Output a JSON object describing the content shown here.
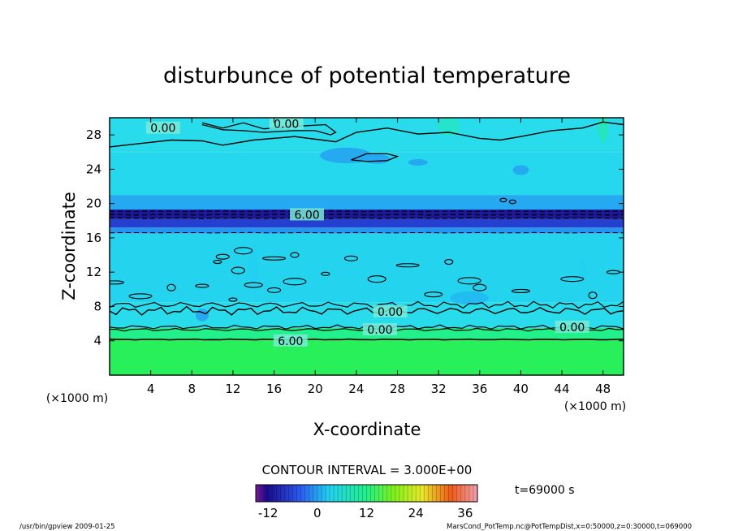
{
  "chart_data": {
    "type": "heatmap",
    "title": "disturbunce of potential temperature",
    "xlabel": "X-coordinate",
    "ylabel": "Z-coordinate",
    "x_unit_left": "(×1000 m)",
    "x_unit_right": "(×1000 m)",
    "xlim": [
      0,
      50
    ],
    "ylim": [
      0,
      30
    ],
    "x_ticks": [
      4,
      8,
      12,
      16,
      20,
      24,
      28,
      32,
      36,
      40,
      44,
      48
    ],
    "y_ticks": [
      4,
      8,
      12,
      16,
      20,
      24,
      28
    ],
    "contour_interval_text": "CONTOUR INTERVAL = 3.000E+00",
    "contour_labels": [
      {
        "text": "0.00",
        "x": 5.2,
        "z": 28.7
      },
      {
        "text": "0.00",
        "x": 17.2,
        "z": 29.2
      },
      {
        "text": "6.00",
        "x": 19.2,
        "z": 18.6
      },
      {
        "text": "0.00",
        "x": 27.3,
        "z": 7.3
      },
      {
        "text": "0.00",
        "x": 26.3,
        "z": 5.2
      },
      {
        "text": "0.00",
        "x": 45.0,
        "z": 5.5
      },
      {
        "text": "6.00",
        "x": 17.6,
        "z": 3.9
      }
    ],
    "colorbar": {
      "min": -15,
      "max": 39,
      "tick_labels": [
        "-12",
        "0",
        "12",
        "24",
        "36"
      ],
      "tick_values": [
        -12,
        0,
        12,
        24,
        36
      ]
    },
    "time_label": "t=69000 s",
    "bands": [
      {
        "z0": 0,
        "z1": 4.2,
        "value": 15
      },
      {
        "z0": 4.2,
        "z1": 5.5,
        "value": 9
      },
      {
        "z0": 5.5,
        "z1": 8.5,
        "value": 3
      },
      {
        "z0": 8.5,
        "z1": 16.5,
        "value": 1
      },
      {
        "z0": 16.5,
        "z1": 17.2,
        "value": -3
      },
      {
        "z0": 17.2,
        "z1": 18.2,
        "value": -8
      },
      {
        "z0": 18.2,
        "z1": 19.3,
        "value": -11
      },
      {
        "z0": 19.3,
        "z1": 21.0,
        "value": -2
      },
      {
        "z0": 21.0,
        "z1": 26.0,
        "value": 2
      },
      {
        "z0": 26.0,
        "z1": 30.0,
        "value": 3
      }
    ]
  },
  "footer": {
    "left": "/usr/bin/gpview   2009-01-25",
    "right": "MarsCond_PotTemp.nc@PotTempDist,x=0:50000,z=0:30000,t=069000"
  },
  "colors": {
    "background": "#ffffff",
    "frame": "#000000"
  }
}
